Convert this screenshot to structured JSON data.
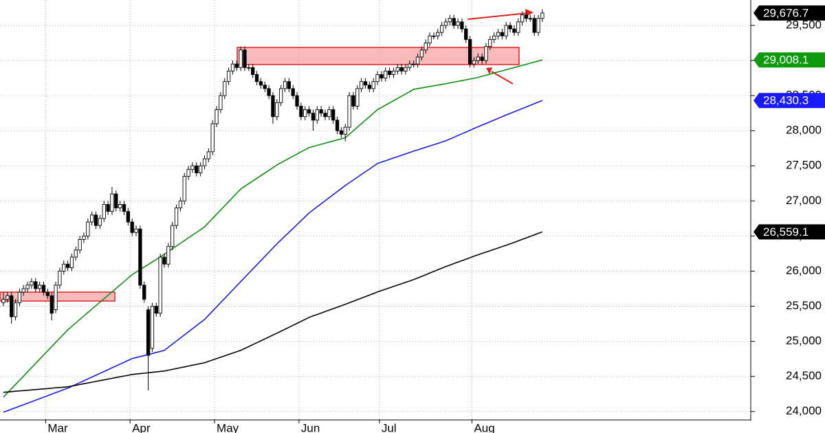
{
  "chart_data": {
    "type": "candlestick",
    "categories": [
      null,
      null,
      null,
      null,
      null,
      null,
      null,
      null,
      null,
      null,
      null,
      "Mar",
      null,
      null,
      null,
      null,
      null,
      null,
      null,
      null,
      null,
      null,
      null,
      null,
      null,
      null,
      null,
      null,
      null,
      null,
      null,
      null,
      "Apr",
      null,
      null,
      null,
      null,
      null,
      null,
      null,
      null,
      null,
      null,
      null,
      null,
      null,
      null,
      null,
      null,
      null,
      null,
      null,
      null,
      "May",
      null,
      null,
      null,
      null,
      null,
      null,
      null,
      null,
      null,
      null,
      null,
      null,
      null,
      null,
      null,
      null,
      null,
      null,
      null,
      null,
      "Jun",
      null,
      null,
      null,
      null,
      null,
      null,
      null,
      null,
      null,
      null,
      null,
      null,
      null,
      null,
      null,
      null,
      null,
      null,
      null,
      "Jul",
      null,
      null,
      null,
      null,
      null,
      null,
      null,
      null,
      null,
      null,
      null,
      null,
      null,
      null,
      null,
      null,
      null,
      null,
      null,
      null,
      null,
      null,
      "Aug",
      null,
      null,
      null,
      null,
      null,
      null,
      null,
      null,
      null,
      null,
      null,
      null,
      null,
      null,
      null,
      null,
      null
    ],
    "open": [
      25550,
      25600,
      25650,
      25350,
      25550,
      25700,
      25750,
      25800,
      25850,
      25750,
      25800,
      25700,
      25650,
      25450,
      25800,
      26000,
      26100,
      26050,
      26200,
      26300,
      26450,
      26500,
      26700,
      26800,
      26650,
      26750,
      26950,
      26850,
      27100,
      26900,
      26950,
      26850,
      26700,
      26550,
      26600,
      25800,
      25450,
      24900,
      25500,
      25400,
      26200,
      26100,
      26350,
      26650,
      26900,
      27000,
      27350,
      27450,
      27500,
      27400,
      27500,
      27600,
      27700,
      28100,
      28300,
      28500,
      28700,
      28850,
      28950,
      28900,
      29150,
      28900,
      28900,
      28800,
      28700,
      28650,
      28600,
      28500,
      28200,
      28400,
      28600,
      28700,
      28600,
      28500,
      28350,
      28200,
      28300,
      28250,
      28150,
      28300,
      28250,
      28200,
      28300,
      28150,
      28000,
      27950,
      28050,
      28500,
      28350,
      28600,
      28700,
      28650,
      28600,
      28700,
      28800,
      28750,
      28850,
      28800,
      28850,
      28900,
      28850,
      28900,
      28950,
      28950,
      29050,
      29150,
      29250,
      29350,
      29350,
      29400,
      29500,
      29550,
      29600,
      29500,
      29550,
      29450,
      29300,
      28950,
      29000,
      29050,
      29000,
      29200,
      29300,
      29350,
      29400,
      29350,
      29500,
      29450,
      29400,
      29550,
      29650,
      29600,
      29600,
      29400,
      29600
    ],
    "high": [
      25700,
      25700,
      25700,
      25600,
      25750,
      25800,
      25850,
      25900,
      25900,
      25850,
      25850,
      25750,
      25700,
      25850,
      26050,
      26150,
      26150,
      26250,
      26350,
      26500,
      26550,
      26750,
      26850,
      26850,
      26800,
      27000,
      27000,
      27200,
      27150,
      27000,
      27000,
      26900,
      26750,
      26650,
      26650,
      25850,
      25500,
      25550,
      25550,
      26250,
      26250,
      26400,
      26700,
      26950,
      27050,
      27400,
      27500,
      27550,
      27550,
      27550,
      27650,
      27750,
      28150,
      28350,
      28550,
      28750,
      28900,
      29000,
      29000,
      29200,
      29200,
      28950,
      28950,
      28850,
      28750,
      28700,
      28650,
      28550,
      28450,
      28650,
      28750,
      28750,
      28650,
      28550,
      28400,
      28350,
      28350,
      28300,
      28350,
      28350,
      28300,
      28350,
      28350,
      28200,
      28050,
      28100,
      28550,
      28550,
      28650,
      28750,
      28750,
      28700,
      28750,
      28850,
      28850,
      28900,
      28900,
      28900,
      28950,
      28950,
      28950,
      29000,
      29000,
      29100,
      29200,
      29300,
      29400,
      29400,
      29450,
      29550,
      29600,
      29650,
      29650,
      29600,
      29600,
      29500,
      29350,
      29050,
      29100,
      29100,
      29250,
      29350,
      29400,
      29450,
      29450,
      29550,
      29550,
      29500,
      29600,
      29700,
      29700,
      29650,
      29650,
      29650,
      29730
    ],
    "low": [
      25500,
      25550,
      25250,
      25300,
      25500,
      25650,
      25700,
      25750,
      25700,
      25700,
      25650,
      25600,
      25300,
      25400,
      25750,
      25950,
      26000,
      26000,
      26150,
      26250,
      26400,
      26450,
      26650,
      26600,
      26600,
      26700,
      26800,
      26800,
      26850,
      26850,
      26800,
      26650,
      26500,
      26500,
      25750,
      25550,
      24300,
      24850,
      25350,
      25350,
      26050,
      26050,
      26300,
      26600,
      26850,
      26950,
      27300,
      27400,
      27350,
      27350,
      27450,
      27550,
      27650,
      28050,
      28250,
      28450,
      28650,
      28800,
      28850,
      28850,
      28850,
      28850,
      28750,
      28650,
      28600,
      28550,
      28450,
      28100,
      28150,
      28350,
      28550,
      28550,
      28450,
      28300,
      28150,
      28150,
      28200,
      28000,
      28100,
      28200,
      28150,
      28150,
      28100,
      27950,
      27900,
      27850,
      28000,
      28300,
      28300,
      28550,
      28600,
      28550,
      28550,
      28650,
      28700,
      28700,
      28750,
      28750,
      28800,
      28800,
      28800,
      28850,
      28900,
      28900,
      29000,
      29100,
      29200,
      29300,
      29300,
      29350,
      29450,
      29500,
      29450,
      29450,
      29400,
      29250,
      28900,
      28900,
      28950,
      28950,
      28950,
      29150,
      29250,
      29300,
      29300,
      29300,
      29400,
      29350,
      29350,
      29500,
      29550,
      29550,
      29350,
      29350,
      29550
    ],
    "close": [
      25600,
      25650,
      25350,
      25550,
      25700,
      25750,
      25800,
      25850,
      25750,
      25800,
      25700,
      25650,
      25400,
      25800,
      26000,
      26100,
      26050,
      26200,
      26300,
      26450,
      26500,
      26700,
      26800,
      26650,
      26750,
      26950,
      26850,
      27100,
      26900,
      26950,
      26850,
      26700,
      26550,
      26600,
      25800,
      25600,
      24800,
      25500,
      25400,
      26200,
      26100,
      26350,
      26650,
      26900,
      27000,
      27350,
      27450,
      27500,
      27400,
      27500,
      27600,
      27700,
      28100,
      28300,
      28500,
      28700,
      28850,
      28950,
      28900,
      29150,
      28900,
      28900,
      28800,
      28700,
      28650,
      28600,
      28500,
      28200,
      28400,
      28600,
      28700,
      28600,
      28500,
      28350,
      28200,
      28300,
      28250,
      28150,
      28300,
      28250,
      28200,
      28300,
      28150,
      28000,
      27950,
      28050,
      28500,
      28350,
      28600,
      28700,
      28650,
      28600,
      28700,
      28800,
      28750,
      28850,
      28800,
      28850,
      28900,
      28850,
      28900,
      28950,
      28950,
      29050,
      29150,
      29250,
      29350,
      29350,
      29400,
      29500,
      29550,
      29600,
      29500,
      29550,
      29450,
      29300,
      28950,
      29000,
      29050,
      29000,
      29200,
      29300,
      29350,
      29400,
      29350,
      29500,
      29450,
      29400,
      29550,
      29650,
      29600,
      29600,
      29400,
      29600,
      29676.7
    ],
    "last_label": "29,676.7",
    "label_bg": "#000000",
    "ma": [
      {
        "color": "#118a11",
        "label_bg": "#0d9b0d",
        "last_label": "29,008.1",
        "values": [
          24205,
          24265,
          24325,
          24385,
          24445,
          24505,
          24565,
          24625,
          24685,
          24745,
          24805,
          24865,
          24925,
          24985,
          25045,
          25105,
          25165,
          25214,
          25263,
          25312,
          25361,
          25410,
          25459,
          25508,
          25557,
          25606,
          25655,
          25704,
          25753,
          25802,
          25851,
          25900,
          25950,
          25986,
          26022,
          26058,
          26094,
          26130,
          26166,
          26202,
          26240,
          26279,
          26318,
          26357,
          26396,
          26435,
          26474,
          26513,
          26552,
          26591,
          26630,
          26690,
          26750,
          26810,
          26870,
          26930,
          26990,
          27050,
          27110,
          27170,
          27208,
          27246,
          27284,
          27322,
          27360,
          27398,
          27436,
          27474,
          27513,
          27544,
          27575,
          27606,
          27637,
          27668,
          27699,
          27730,
          27760,
          27776,
          27791,
          27807,
          27822,
          27838,
          27853,
          27869,
          27884,
          27900,
          27950,
          28000,
          28050,
          28100,
          28150,
          28200,
          28250,
          28300,
          28332,
          28364,
          28396,
          28428,
          28460,
          28492,
          28524,
          28556,
          28590,
          28600,
          28610,
          28620,
          28630,
          28640,
          28650,
          28660,
          28670,
          28681,
          28692,
          28703,
          28714,
          28725,
          28736,
          28747,
          28760,
          28776,
          28791,
          28807,
          28822,
          28838,
          28853,
          28869,
          28884,
          28900,
          28915,
          28931,
          28946,
          28962,
          28977,
          28993,
          29008.1
        ]
      },
      {
        "color": "#1a1ad8",
        "label_bg": "#1a1aff",
        "last_label": "28,430.3",
        "values": [
          23990,
          24011,
          24033,
          24054,
          24076,
          24097,
          24119,
          24140,
          24162,
          24183,
          24204,
          24226,
          24247,
          24269,
          24290,
          24312,
          24333,
          24359,
          24386,
          24412,
          24438,
          24465,
          24491,
          24517,
          24544,
          24570,
          24596,
          24623,
          24649,
          24675,
          24702,
          24728,
          24754,
          24769,
          24783,
          24798,
          24812,
          24827,
          24842,
          24856,
          24871,
          24915,
          24959,
          25003,
          25047,
          25091,
          25135,
          25179,
          25223,
          25267,
          25311,
          25371,
          25431,
          25491,
          25551,
          25611,
          25671,
          25731,
          25791,
          25850,
          25910,
          25970,
          26030,
          26090,
          26150,
          26209,
          26269,
          26329,
          26388,
          26443,
          26498,
          26553,
          26608,
          26663,
          26718,
          26773,
          26829,
          26872,
          26916,
          26959,
          27003,
          27046,
          27090,
          27133,
          27177,
          27220,
          27259,
          27298,
          27337,
          27376,
          27415,
          27454,
          27494,
          27533,
          27553,
          27572,
          27592,
          27611,
          27631,
          27650,
          27670,
          27690,
          27709,
          27727,
          27746,
          27764,
          27783,
          27801,
          27819,
          27838,
          27856,
          27881,
          27906,
          27931,
          27956,
          27981,
          28006,
          28032,
          28056,
          28080,
          28104,
          28128,
          28152,
          28176,
          28200,
          28224,
          28247,
          28270,
          28293,
          28316,
          28339,
          28362,
          28385,
          28408,
          28430.3
        ]
      },
      {
        "color": "#000000",
        "label_bg": "#000000",
        "last_label": "26,559.1",
        "values": [
          24274,
          24279,
          24284,
          24289,
          24294,
          24298,
          24303,
          24308,
          24313,
          24318,
          24323,
          24328,
          24333,
          24338,
          24342,
          24347,
          24352,
          24363,
          24374,
          24385,
          24396,
          24407,
          24418,
          24429,
          24440,
          24451,
          24462,
          24473,
          24484,
          24495,
          24506,
          24517,
          24528,
          24534,
          24540,
          24546,
          24552,
          24559,
          24565,
          24571,
          24577,
          24589,
          24601,
          24613,
          24624,
          24636,
          24648,
          24660,
          24671,
          24683,
          24695,
          24715,
          24734,
          24754,
          24773,
          24793,
          24812,
          24832,
          24851,
          24871,
          24898,
          24925,
          24953,
          24980,
          25007,
          25034,
          25062,
          25089,
          25116,
          25144,
          25172,
          25200,
          25228,
          25256,
          25285,
          25313,
          25341,
          25362,
          25382,
          25403,
          25424,
          25444,
          25465,
          25486,
          25506,
          25527,
          25549,
          25571,
          25593,
          25615,
          25637,
          25659,
          25681,
          25703,
          25723,
          25742,
          25762,
          25781,
          25801,
          25820,
          25840,
          25859,
          25879,
          25902,
          25925,
          25949,
          25972,
          25995,
          26019,
          26042,
          26065,
          26086,
          26107,
          26128,
          26149,
          26170,
          26191,
          26212,
          26232,
          26251,
          26271,
          26290,
          26310,
          26329,
          26349,
          26368,
          26388,
          26409,
          26431,
          26452,
          26474,
          26495,
          26516,
          26538,
          26559.1
        ]
      }
    ],
    "ylim": [
      23890,
      29862
    ],
    "yticks": [
      {
        "value": 24000,
        "label": "24,000"
      },
      {
        "value": 24500,
        "label": "24,500"
      },
      {
        "value": 25000,
        "label": "25,000"
      },
      {
        "value": 25500,
        "label": "25,500"
      },
      {
        "value": 26000,
        "label": "26,000"
      },
      {
        "value": 26500,
        "label": "26,500"
      },
      {
        "value": 27000,
        "label": "27,000"
      },
      {
        "value": 27500,
        "label": "27,500"
      },
      {
        "value": 28000,
        "label": "28,000"
      },
      {
        "value": 28500,
        "label": "28,500"
      },
      {
        "value": 29000,
        "label": "29,000"
      },
      {
        "value": 29500,
        "label": "29,500"
      }
    ],
    "grid": true
  }
}
